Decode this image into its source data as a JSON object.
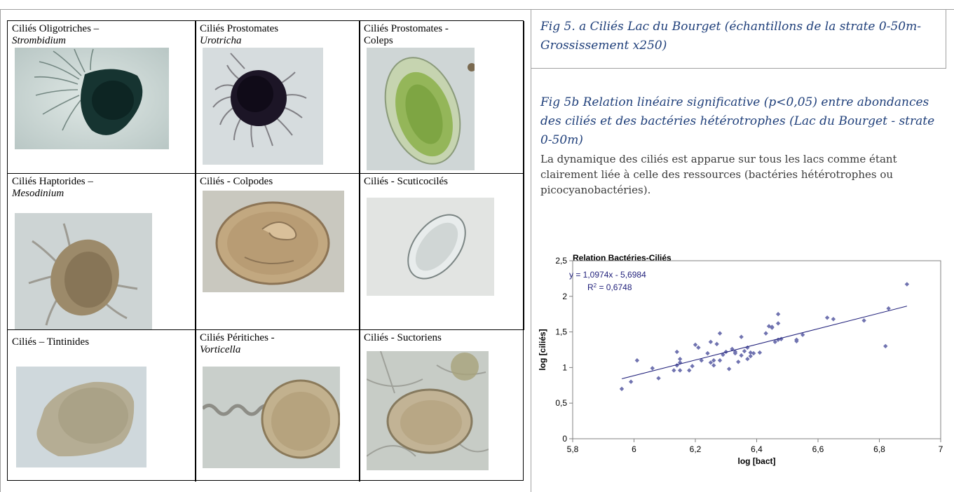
{
  "cells": [
    {
      "label": "Ciliés Oligotriches –",
      "sub": "Strombidium"
    },
    {
      "label": "Ciliés Prostomates",
      "sub": "Urotricha"
    },
    {
      "label": "Ciliés Prostomates - Coleps",
      "sub": ""
    },
    {
      "label": "Ciliés Haptorides –",
      "sub": "Mesodinium"
    },
    {
      "label": "Ciliés - Colpodes",
      "sub": ""
    },
    {
      "label": "Ciliés - Scuticocilés",
      "sub": ""
    },
    {
      "label": "Ciliés – Tintinides",
      "sub": ""
    },
    {
      "label": "Ciliés Péritiches -",
      "sub": "Vorticella"
    },
    {
      "label": "Ciliés - Suctoriens",
      "sub": ""
    }
  ],
  "caption_5a": "Fig 5. a  Ciliés Lac du Bourget (échantillons  de la strate 0-50m- Grossissement x250)",
  "caption_5b": "Fig 5b Relation linéaire significative (p<0,05) entre abondances des ciliés et des bactéries hétérotrophes (Lac du Bourget - strate 0-50m)",
  "body_text": "La dynamique des ciliés est apparue sur tous les lacs comme étant clairement liée à celle des ressources (bactéries hétérotrophes ou picocyanobactéries).",
  "colors": {
    "caption": "#1f3f7a",
    "series": "#7073b0",
    "trendline": "#1f1f7a"
  },
  "chart_data": {
    "type": "scatter",
    "title": "Relation Bactéries-Ciliés",
    "xlabel": "log [bact]",
    "ylabel": "log [ciliés]",
    "xlim": [
      5.8,
      7
    ],
    "ylim": [
      0,
      2.5
    ],
    "x_ticks": [
      "5,8",
      "6",
      "6,2",
      "6,4",
      "6,6",
      "6,8",
      "7"
    ],
    "y_ticks": [
      "0",
      "0,5",
      "1",
      "1,5",
      "2",
      "2,5"
    ],
    "equation": "y = 1,0974x - 5,6984",
    "r2_label": "R",
    "r2_sup": "2",
    "r2_value": " = 0,6748",
    "trendline": {
      "slope": 1.0974,
      "intercept": -5.6984,
      "x_range": [
        5.96,
        6.89
      ]
    },
    "points": [
      [
        5.96,
        0.7
      ],
      [
        5.99,
        0.8
      ],
      [
        6.01,
        1.1
      ],
      [
        6.06,
        0.99
      ],
      [
        6.08,
        0.85
      ],
      [
        6.13,
        0.96
      ],
      [
        6.14,
        1.03
      ],
      [
        6.14,
        1.22
      ],
      [
        6.15,
        1.12
      ],
      [
        6.15,
        1.07
      ],
      [
        6.15,
        0.96
      ],
      [
        6.18,
        0.96
      ],
      [
        6.19,
        1.02
      ],
      [
        6.2,
        1.32
      ],
      [
        6.21,
        1.28
      ],
      [
        6.22,
        1.1
      ],
      [
        6.24,
        1.2
      ],
      [
        6.25,
        1.07
      ],
      [
        6.25,
        1.36
      ],
      [
        6.26,
        1.1
      ],
      [
        6.26,
        1.03
      ],
      [
        6.27,
        1.33
      ],
      [
        6.28,
        1.48
      ],
      [
        6.28,
        1.1
      ],
      [
        6.29,
        1.18
      ],
      [
        6.3,
        1.22
      ],
      [
        6.31,
        0.98
      ],
      [
        6.32,
        1.26
      ],
      [
        6.33,
        1.22
      ],
      [
        6.33,
        1.2
      ],
      [
        6.34,
        1.08
      ],
      [
        6.35,
        1.43
      ],
      [
        6.35,
        1.17
      ],
      [
        6.36,
        1.23
      ],
      [
        6.37,
        1.28
      ],
      [
        6.37,
        1.12
      ],
      [
        6.38,
        1.16
      ],
      [
        6.38,
        1.21
      ],
      [
        6.39,
        1.2
      ],
      [
        6.41,
        1.21
      ],
      [
        6.43,
        1.48
      ],
      [
        6.44,
        1.58
      ],
      [
        6.45,
        1.57
      ],
      [
        6.45,
        1.56
      ],
      [
        6.46,
        1.36
      ],
      [
        6.47,
        1.39
      ],
      [
        6.47,
        1.62
      ],
      [
        6.47,
        1.75
      ],
      [
        6.48,
        1.4
      ],
      [
        6.53,
        1.37
      ],
      [
        6.53,
        1.39
      ],
      [
        6.55,
        1.46
      ],
      [
        6.63,
        1.7
      ],
      [
        6.65,
        1.68
      ],
      [
        6.75,
        1.66
      ],
      [
        6.82,
        1.3
      ],
      [
        6.83,
        1.83
      ],
      [
        6.89,
        2.17
      ]
    ]
  }
}
